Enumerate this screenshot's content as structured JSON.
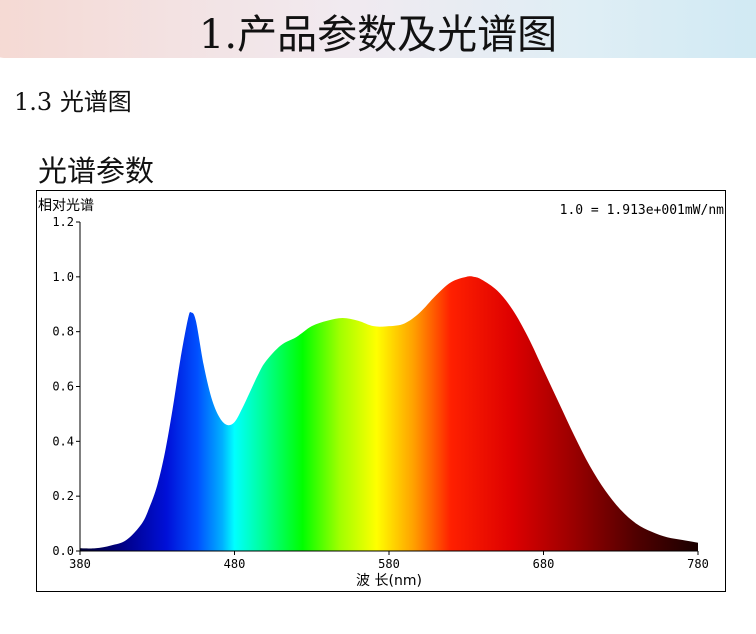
{
  "header": {
    "title": "1.产品参数及光谱图"
  },
  "section": {
    "number": "1.3",
    "title": "光谱图"
  },
  "chart_heading": "光谱参数",
  "chart_data": {
    "type": "area",
    "ylabel": "相对光谱",
    "xlabel": "波 长(nm)",
    "annotation": "1.0 = 1.913e+001mW/nm",
    "xlim": [
      380,
      780
    ],
    "ylim": [
      0,
      1.2
    ],
    "x_ticks": [
      380,
      480,
      580,
      680,
      780
    ],
    "y_ticks": [
      "0.0",
      "0.2",
      "0.4",
      "0.6",
      "0.8",
      "1.0",
      "1.2"
    ],
    "fill": "visible-spectrum gradient",
    "x": [
      380,
      390,
      400,
      410,
      420,
      425,
      430,
      435,
      440,
      445,
      450,
      452,
      455,
      460,
      465,
      470,
      475,
      480,
      485,
      490,
      495,
      500,
      510,
      520,
      530,
      540,
      550,
      560,
      570,
      580,
      590,
      600,
      610,
      620,
      630,
      635,
      640,
      650,
      660,
      670,
      680,
      690,
      700,
      710,
      720,
      730,
      740,
      750,
      760,
      770,
      780
    ],
    "y": [
      0.01,
      0.01,
      0.02,
      0.04,
      0.1,
      0.16,
      0.24,
      0.36,
      0.52,
      0.7,
      0.85,
      0.87,
      0.84,
      0.68,
      0.56,
      0.49,
      0.46,
      0.47,
      0.52,
      0.58,
      0.64,
      0.69,
      0.75,
      0.78,
      0.82,
      0.84,
      0.85,
      0.84,
      0.82,
      0.82,
      0.83,
      0.87,
      0.93,
      0.98,
      1.0,
      1.0,
      0.99,
      0.95,
      0.88,
      0.78,
      0.66,
      0.54,
      0.42,
      0.31,
      0.22,
      0.15,
      0.1,
      0.07,
      0.05,
      0.04,
      0.03
    ]
  }
}
